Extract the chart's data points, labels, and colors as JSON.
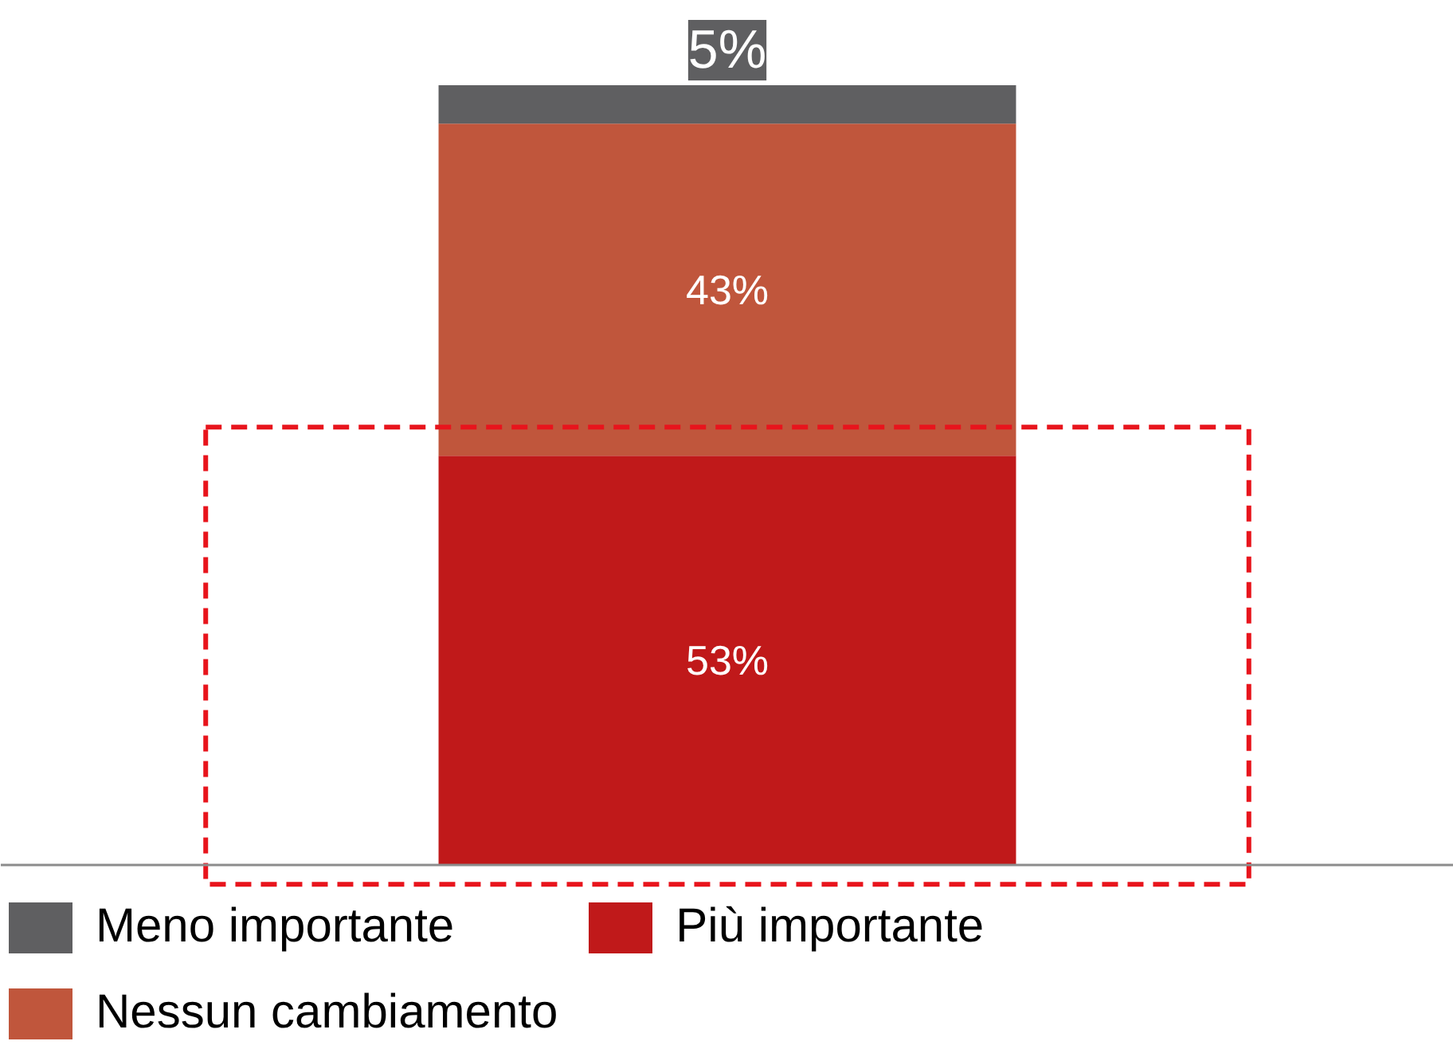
{
  "chart_data": {
    "type": "bar",
    "stacked": true,
    "categories": [
      null
    ],
    "series": [
      {
        "name": "Più importante",
        "color": "#c0191a",
        "values": [
          53
        ],
        "value_labels": [
          "53%"
        ]
      },
      {
        "name": "Nessun cambiamento",
        "color": "#c0563c",
        "values": [
          43
        ],
        "value_labels": [
          "43%"
        ]
      },
      {
        "name": "Meno importante",
        "color": "#5f5f61",
        "values": [
          5
        ],
        "value_labels": [
          "5%"
        ]
      }
    ],
    "legend": "bottom"
  }
}
